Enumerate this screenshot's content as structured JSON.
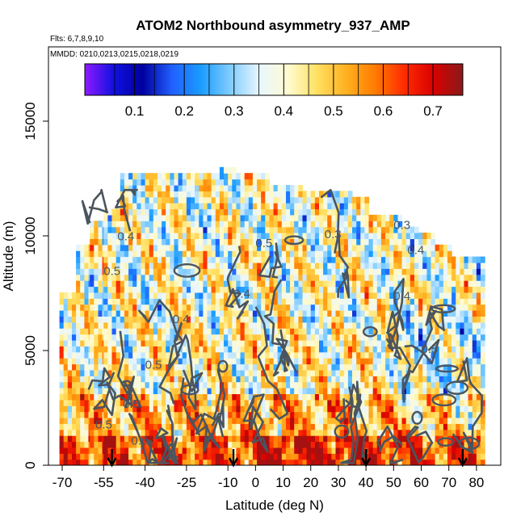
{
  "chart_data": {
    "type": "heatmap",
    "title": "ATOM2 Northbound asymmetry_937_AMP",
    "subtitle_flights": "Flts: 6,7,8,9,10",
    "subtitle_dates": "MMDD: 0210,0213,0215,0218,0219",
    "xlabel": "Latitude (deg N)",
    "ylabel": "Altitude (m)",
    "xlim": [
      -70,
      85
    ],
    "ylim": [
      0,
      17500
    ],
    "x_ticks": [
      -70,
      -55,
      -40,
      -25,
      -10,
      0,
      10,
      20,
      30,
      40,
      50,
      60,
      70,
      80
    ],
    "y_ticks": [
      0,
      5000,
      10000,
      15000
    ],
    "colorbar": {
      "range": [
        0.0,
        0.76
      ],
      "ticks": [
        0.1,
        0.2,
        0.3,
        0.4,
        0.5,
        0.6,
        0.7
      ],
      "colors": [
        "#8f1aff",
        "#1010e0",
        "#0000a0",
        "#2060ff",
        "#1a9cff",
        "#80ccff",
        "#e8f6ff",
        "#fffbd0",
        "#ffe060",
        "#ffb020",
        "#ff7a00",
        "#ff2a00",
        "#d80000",
        "#8a1a1a"
      ]
    },
    "contour_labels": [
      "0.5",
      "0.4",
      "0.5",
      "0.4",
      "0.5",
      "0.6",
      "0.4",
      "0.5",
      "0.3",
      "0.4",
      "0.5",
      "0.3",
      "0.4",
      "0.5"
    ],
    "flight_arrow_latitudes": [
      -52,
      -8,
      40,
      75
    ],
    "profile_columns": [
      {
        "lat": -68,
        "top": 7500
      },
      {
        "lat": -62,
        "top": 9500
      },
      {
        "lat": -57,
        "top": 10500
      },
      {
        "lat": -52,
        "top": 11000
      },
      {
        "lat": -46,
        "top": 12500
      },
      {
        "lat": -40,
        "top": 12500
      },
      {
        "lat": -34,
        "top": 12500
      },
      {
        "lat": -28,
        "top": 12500
      },
      {
        "lat": -22,
        "top": 12500
      },
      {
        "lat": -16,
        "top": 12500
      },
      {
        "lat": -10,
        "top": 12800
      },
      {
        "lat": -4,
        "top": 12500
      },
      {
        "lat": 2,
        "top": 12500
      },
      {
        "lat": 8,
        "top": 12000
      },
      {
        "lat": 14,
        "top": 12000
      },
      {
        "lat": 20,
        "top": 11800
      },
      {
        "lat": 26,
        "top": 11800
      },
      {
        "lat": 32,
        "top": 11800
      },
      {
        "lat": 38,
        "top": 11500
      },
      {
        "lat": 44,
        "top": 10800
      },
      {
        "lat": 50,
        "top": 10800
      },
      {
        "lat": 56,
        "top": 10300
      },
      {
        "lat": 62,
        "top": 10000
      },
      {
        "lat": 68,
        "top": 9500
      },
      {
        "lat": 74,
        "top": 9000
      },
      {
        "lat": 80,
        "top": 9000
      }
    ]
  }
}
